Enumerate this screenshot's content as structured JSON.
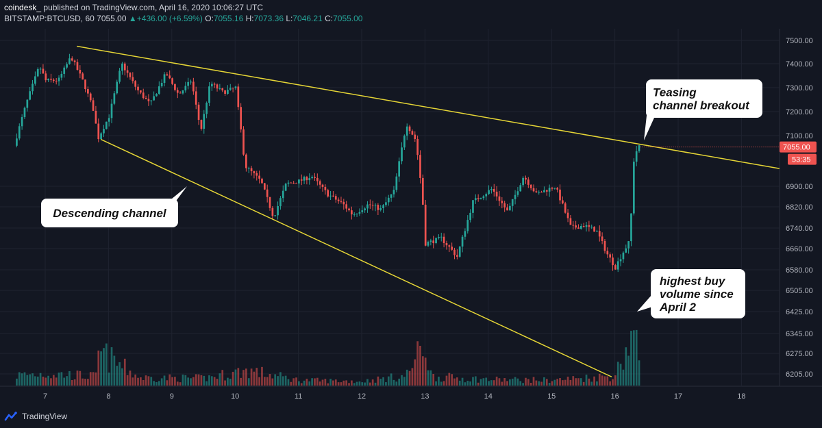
{
  "header": {
    "author": "coindesk_",
    "published": "published on TradingView.com, April 16, 2020 10:06:27 UTC",
    "symbol": "BITSTAMP:BTCUSD, 60",
    "last": "7055.00",
    "change": "+436.00 (+6.59%)",
    "o_label": "O:",
    "o": "7055.16",
    "h_label": "H:",
    "h": "7073.36",
    "l_label": "L:",
    "l": "7046.21",
    "c_label": "C:",
    "c": "7055.00"
  },
  "footer": {
    "brand": "TradingView"
  },
  "colors": {
    "background": "#131722",
    "up": "#26a69a",
    "down": "#ef5350",
    "trendline": "#e5d536",
    "grid": "#1f2330"
  },
  "chart_data": {
    "type": "candlestick",
    "x_tick_labels": [
      "7",
      "8",
      "9",
      "10",
      "11",
      "12",
      "13",
      "14",
      "15",
      "16",
      "17",
      "18"
    ],
    "y_tick_labels": [
      "7500.00",
      "7400.00",
      "7300.00",
      "7200.00",
      "7100.00",
      "6900.00",
      "6820.00",
      "6740.00",
      "6660.00",
      "6580.00",
      "6505.00",
      "6425.00",
      "6345.00",
      "6275.00",
      "6205.00"
    ],
    "last_price_label": "7055.00",
    "countdown_label": "53:35",
    "price_path": [
      [
        6.55,
        7060
      ],
      [
        6.75,
        7240
      ],
      [
        6.95,
        7390
      ],
      [
        7.05,
        7330
      ],
      [
        7.25,
        7330
      ],
      [
        7.45,
        7430
      ],
      [
        7.65,
        7320
      ],
      [
        7.8,
        7210
      ],
      [
        7.88,
        7090
      ],
      [
        8.05,
        7180
      ],
      [
        8.25,
        7400
      ],
      [
        8.5,
        7290
      ],
      [
        8.7,
        7230
      ],
      [
        8.95,
        7360
      ],
      [
        9.15,
        7270
      ],
      [
        9.35,
        7330
      ],
      [
        9.5,
        7120
      ],
      [
        9.65,
        7320
      ],
      [
        9.85,
        7280
      ],
      [
        10.05,
        7300
      ],
      [
        10.2,
        6980
      ],
      [
        10.45,
        6920
      ],
      [
        10.65,
        6780
      ],
      [
        10.85,
        6910
      ],
      [
        11.05,
        6920
      ],
      [
        11.25,
        6940
      ],
      [
        11.5,
        6870
      ],
      [
        11.75,
        6830
      ],
      [
        11.9,
        6790
      ],
      [
        12.15,
        6830
      ],
      [
        12.35,
        6810
      ],
      [
        12.55,
        6880
      ],
      [
        12.75,
        7150
      ],
      [
        12.9,
        7080
      ],
      [
        13.0,
        6860
      ],
      [
        13.05,
        6680
      ],
      [
        13.3,
        6700
      ],
      [
        13.55,
        6630
      ],
      [
        13.8,
        6840
      ],
      [
        14.1,
        6890
      ],
      [
        14.35,
        6800
      ],
      [
        14.6,
        6940
      ],
      [
        14.8,
        6870
      ],
      [
        15.1,
        6900
      ],
      [
        15.35,
        6740
      ],
      [
        15.55,
        6750
      ],
      [
        15.75,
        6730
      ],
      [
        15.92,
        6640
      ],
      [
        16.05,
        6590
      ],
      [
        16.18,
        6650
      ],
      [
        16.28,
        6690
      ],
      [
        16.34,
        7000
      ],
      [
        16.4,
        7055
      ]
    ],
    "volume_path": [
      [
        6.55,
        0.17
      ],
      [
        7.0,
        0.2
      ],
      [
        7.8,
        0.15
      ],
      [
        7.85,
        0.55
      ],
      [
        8.5,
        0.13
      ],
      [
        9.5,
        0.12
      ],
      [
        10.2,
        0.25
      ],
      [
        11.0,
        0.09
      ],
      [
        12.0,
        0.07
      ],
      [
        12.7,
        0.16
      ],
      [
        13.0,
        0.7
      ],
      [
        13.1,
        0.15
      ],
      [
        14.0,
        0.1
      ],
      [
        15.0,
        0.09
      ],
      [
        15.7,
        0.14
      ],
      [
        16.0,
        0.16
      ],
      [
        16.3,
        0.9
      ],
      [
        16.35,
        0.55
      ],
      [
        16.4,
        0.35
      ]
    ],
    "trendlines": [
      {
        "from": [
          7.5,
          7475
        ],
        "to": [
          18.6,
          6970
        ]
      },
      {
        "from": [
          7.88,
          7085
        ],
        "to": [
          15.95,
          6195
        ]
      }
    ],
    "annotations": [
      {
        "text": [
          "Descending channel"
        ],
        "bold_italic": true
      },
      {
        "text": [
          "Teasing",
          "channel breakout"
        ],
        "bold_italic": true
      },
      {
        "text": [
          "highest buy",
          "volume since",
          "April 2"
        ],
        "bold_italic": true
      }
    ]
  }
}
